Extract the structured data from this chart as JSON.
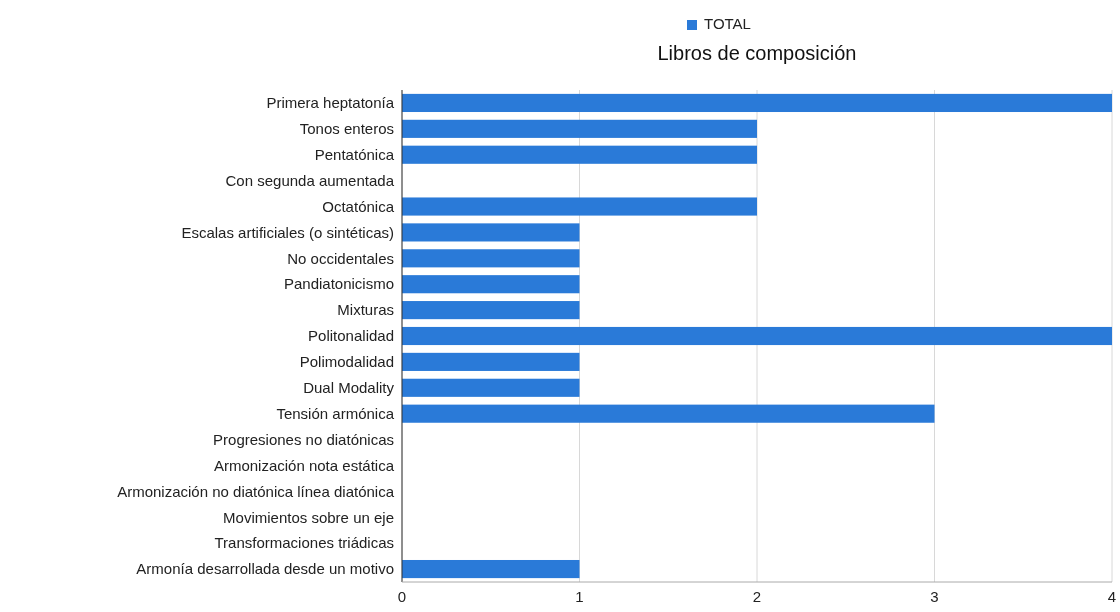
{
  "chart_data": {
    "type": "bar",
    "orientation": "horizontal",
    "title": "Libros de composición",
    "categories": [
      "Primera heptatonía",
      "Tonos enteros",
      "Pentatónica",
      "Con segunda aumentada",
      "Octatónica",
      "Escalas artificiales (o sintéticas)",
      "No occidentales",
      "Pandiatonicismo",
      "Mixturas",
      "Politonalidad",
      "Polimodalidad",
      "Dual Modality",
      "Tensión armónica",
      "Progresiones no diatónicas",
      "Armonización nota estática",
      "Armonización no diatónica línea diatónica",
      "Movimientos sobre un eje",
      "Transformaciones triádicas",
      "Armonía desarrollada desde un motivo"
    ],
    "series": [
      {
        "name": "TOTAL",
        "color": "#2a7ad8",
        "values": [
          4,
          2,
          2,
          0,
          2,
          1,
          1,
          1,
          1,
          4,
          1,
          1,
          3,
          0,
          0,
          0,
          0,
          0,
          1
        ]
      }
    ],
    "xlim": [
      0,
      4
    ],
    "xticks": [
      0,
      1,
      2,
      3,
      4
    ],
    "grid": "x",
    "legend": "top"
  }
}
